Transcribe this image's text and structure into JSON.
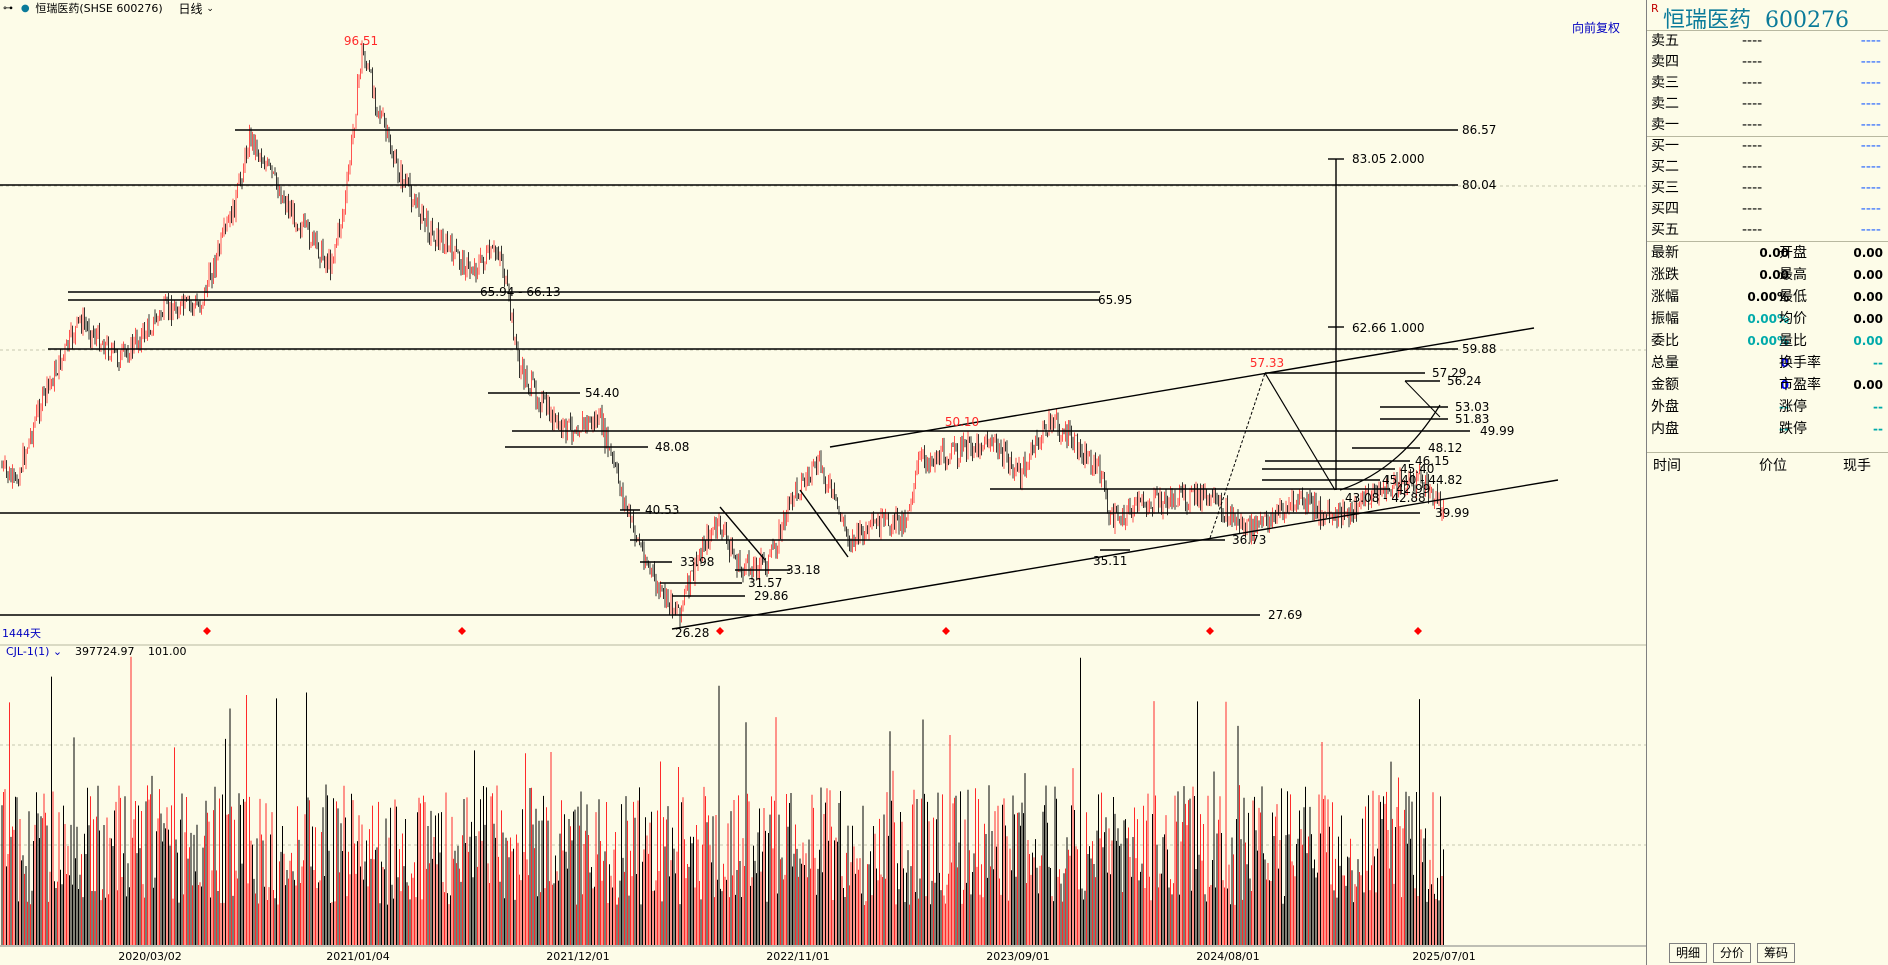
{
  "header": {
    "window_icon": "link-icon",
    "title": "恒瑞医药(SHSE 600276)",
    "period": "日线",
    "adjust": "向前复权"
  },
  "chart_data": {
    "type": "candlestick",
    "ylim": [
      24,
      100
    ],
    "x_ticks": [
      "2020/03/02",
      "2021/01/04",
      "2021/12/01",
      "2022/11/01",
      "2023/09/01",
      "2024/08/01",
      "2025/07/01"
    ],
    "days_label": "1444天",
    "price_peaks": [
      {
        "label": "96.51",
        "value": 96.51
      },
      {
        "label": "57.33",
        "value": 57.33
      },
      {
        "label": "50.10",
        "value": 50.1
      }
    ],
    "horizontal_levels": [
      {
        "label": "86.57",
        "value": 86.57
      },
      {
        "label": "80.04",
        "value": 80.04
      },
      {
        "label": "65.94 - 66.13",
        "value": 66.13
      },
      {
        "label": "65.95",
        "value": 65.95
      },
      {
        "label": "59.88",
        "value": 59.88
      },
      {
        "label": "54.40",
        "value": 54.4
      },
      {
        "label": "49.99",
        "value": 49.99
      },
      {
        "label": "48.08",
        "value": 48.08
      },
      {
        "label": "40.53",
        "value": 40.53
      },
      {
        "label": "39.99",
        "value": 39.99
      },
      {
        "label": "36.73",
        "value": 36.73
      },
      {
        "label": "35.11",
        "value": 35.11
      },
      {
        "label": "33.98",
        "value": 33.98
      },
      {
        "label": "33.18",
        "value": 33.18
      },
      {
        "label": "31.57",
        "value": 31.57
      },
      {
        "label": "29.86",
        "value": 29.86
      },
      {
        "label": "27.69",
        "value": 27.69
      },
      {
        "label": "26.28",
        "value": 26.28
      },
      {
        "label": "57.29",
        "value": 57.29
      },
      {
        "label": "56.24",
        "value": 56.24
      },
      {
        "label": "53.03",
        "value": 53.03
      },
      {
        "label": "51.83",
        "value": 51.83
      },
      {
        "label": "48.12",
        "value": 48.12
      },
      {
        "label": "46.15",
        "value": 46.15
      },
      {
        "label": "45.40",
        "value": 45.4
      },
      {
        "label": "45.40 - 44.82",
        "value": 44.82
      },
      {
        "label": "42.99",
        "value": 42.99
      },
      {
        "label": "43.08 - 42.88",
        "value": 42.88
      }
    ],
    "fib_levels": [
      {
        "label": "83.05  2.000",
        "value": 83.05
      },
      {
        "label": "62.66  1.000",
        "value": 62.66
      }
    ],
    "volume_indicator": {
      "name": "CJL-1(1)",
      "value": "397724.97",
      "extra": "101.00"
    }
  },
  "quote": {
    "name": "恒瑞医药",
    "code": "600276",
    "order_book": [
      {
        "label": "卖五",
        "price": "----",
        "vol": "----"
      },
      {
        "label": "卖四",
        "price": "----",
        "vol": "----"
      },
      {
        "label": "卖三",
        "price": "----",
        "vol": "----"
      },
      {
        "label": "卖二",
        "price": "----",
        "vol": "----"
      },
      {
        "label": "卖一",
        "price": "----",
        "vol": "----"
      },
      {
        "label": "买一",
        "price": "----",
        "vol": "----"
      },
      {
        "label": "买二",
        "price": "----",
        "vol": "----"
      },
      {
        "label": "买三",
        "price": "----",
        "vol": "----"
      },
      {
        "label": "买四",
        "price": "----",
        "vol": "----"
      },
      {
        "label": "买五",
        "price": "----",
        "vol": "----"
      }
    ],
    "stats": [
      {
        "l1": "最新",
        "v1": "0.00",
        "l2": "开盘",
        "v2": "0.00"
      },
      {
        "l1": "涨跌",
        "v1": "0.00",
        "l2": "最高",
        "v2": "0.00"
      },
      {
        "l1": "涨幅",
        "v1": "0.00%",
        "l2": "最低",
        "v2": "0.00"
      },
      {
        "l1": "振幅",
        "v1": "0.00%",
        "l2": "均价",
        "v2": "0.00"
      },
      {
        "l1": "委比",
        "v1": "0.00%",
        "l2": "量比",
        "v2": "0.00"
      },
      {
        "l1": "总量",
        "v1": "0",
        "l2": "换手率",
        "v2": "--"
      },
      {
        "l1": "金额",
        "v1": "0",
        "l2": "市盈率",
        "v2": "0.00"
      },
      {
        "l1": "外盘",
        "v1": "--",
        "l2": "涨停",
        "v2": "--"
      },
      {
        "l1": "内盘",
        "v1": "--",
        "l2": "跌停",
        "v2": "--"
      }
    ],
    "trade_columns": [
      "时间",
      "价位",
      "现手"
    ],
    "tabs": [
      "明细",
      "分价",
      "筹码"
    ]
  },
  "colors": {
    "up": "#ff2a2a",
    "down": "#000000",
    "accent": "#0b7b9a",
    "bg": "#fdfce8"
  }
}
